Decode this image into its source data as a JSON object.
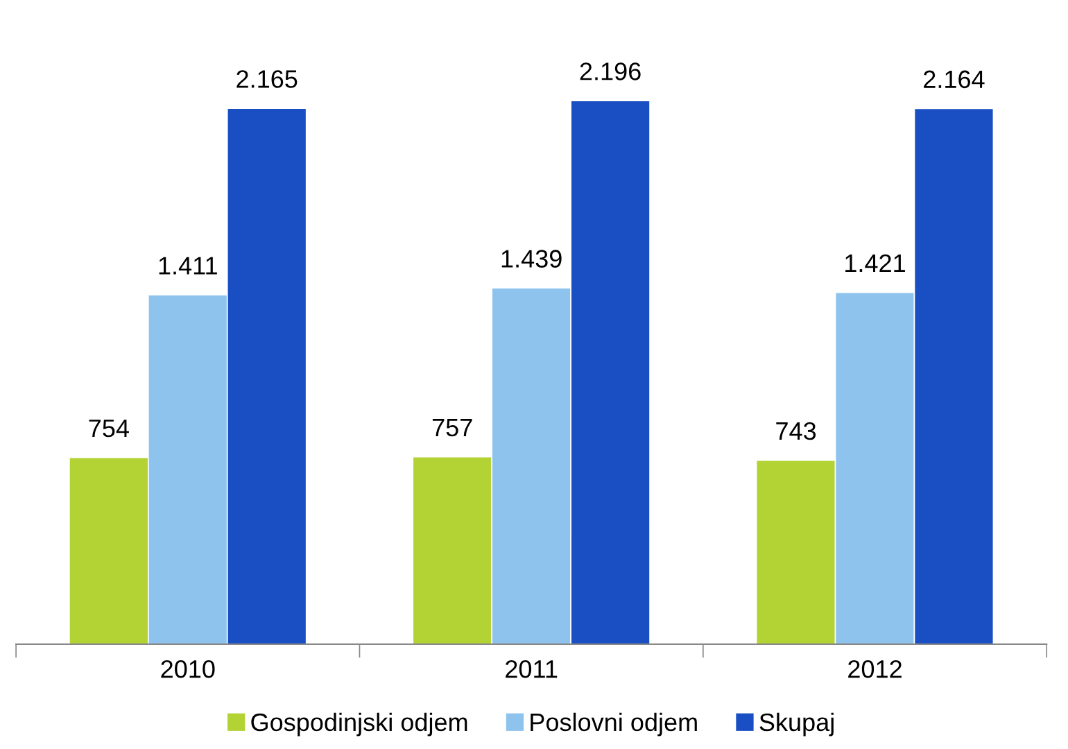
{
  "chart_data": {
    "type": "bar",
    "categories": [
      "2010",
      "2011",
      "2012"
    ],
    "series": [
      {
        "name": "Gospodinjski odjem",
        "color": "#b3d335",
        "values": [
          754,
          757,
          743
        ],
        "value_labels": [
          "754",
          "757",
          "743"
        ]
      },
      {
        "name": "Poslovni odjem",
        "color": "#8ec3ee",
        "values": [
          1411,
          1439,
          1421
        ],
        "value_labels": [
          "1.411",
          "1.439",
          "1.421"
        ]
      },
      {
        "name": "Skupaj",
        "color": "#1a4fc4",
        "values": [
          2165,
          2196,
          2164
        ],
        "value_labels": [
          "2.165",
          "2.196",
          "2.164"
        ]
      }
    ],
    "tick_labels": "x",
    "grid": false,
    "legend": "bottom"
  }
}
